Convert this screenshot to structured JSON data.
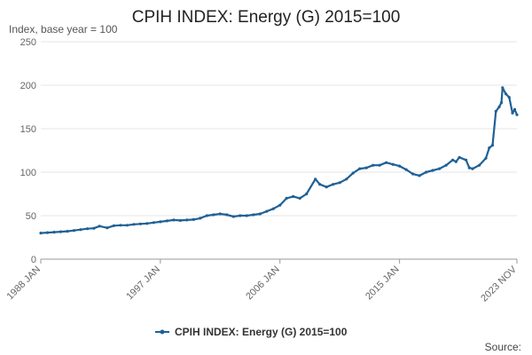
{
  "chart_data": {
    "type": "line",
    "title": "CPIH INDEX: Energy (G) 2015=100",
    "subtitle": "Index, base year = 100",
    "xlabel": "",
    "ylabel": "",
    "ylim": [
      0,
      250
    ],
    "yticks": [
      "0",
      "50",
      "100",
      "150",
      "200",
      "250"
    ],
    "xlim": [
      "1988 JAN",
      "2023 NOV"
    ],
    "xticks": [
      "1988 JAN",
      "1997 JAN",
      "2006 JAN",
      "2015 JAN",
      "2023 NOV"
    ],
    "grid": true,
    "legend_position": "bottom",
    "source_label": "Source:",
    "line_color": "#206095",
    "series": [
      {
        "name": "CPIH INDEX: Energy (G) 2015=100",
        "points": [
          [
            "1988-01",
            30
          ],
          [
            "1988-07",
            30.5
          ],
          [
            "1989-01",
            31
          ],
          [
            "1989-07",
            31.5
          ],
          [
            "1990-01",
            32
          ],
          [
            "1990-07",
            33
          ],
          [
            "1991-01",
            34
          ],
          [
            "1991-07",
            35
          ],
          [
            "1992-01",
            35.5
          ],
          [
            "1992-06",
            38
          ],
          [
            "1993-01",
            36
          ],
          [
            "1993-07",
            38.5
          ],
          [
            "1994-01",
            39
          ],
          [
            "1994-07",
            39
          ],
          [
            "1995-01",
            40
          ],
          [
            "1995-07",
            40.5
          ],
          [
            "1996-01",
            41
          ],
          [
            "1996-07",
            42
          ],
          [
            "1997-01",
            43
          ],
          [
            "1997-07",
            44
          ],
          [
            "1998-01",
            45
          ],
          [
            "1998-07",
            44.5
          ],
          [
            "1999-01",
            45
          ],
          [
            "1999-07",
            45.5
          ],
          [
            "2000-01",
            47
          ],
          [
            "2000-07",
            50
          ],
          [
            "2001-01",
            51
          ],
          [
            "2001-07",
            52
          ],
          [
            "2002-01",
            51
          ],
          [
            "2002-07",
            49
          ],
          [
            "2003-01",
            50
          ],
          [
            "2003-07",
            50
          ],
          [
            "2004-01",
            51
          ],
          [
            "2004-07",
            52
          ],
          [
            "2005-01",
            55
          ],
          [
            "2005-07",
            58
          ],
          [
            "2006-01",
            62
          ],
          [
            "2006-07",
            70
          ],
          [
            "2007-01",
            72
          ],
          [
            "2007-07",
            70
          ],
          [
            "2008-01",
            75
          ],
          [
            "2008-09",
            92
          ],
          [
            "2009-01",
            86
          ],
          [
            "2009-07",
            83
          ],
          [
            "2010-01",
            86
          ],
          [
            "2010-07",
            88
          ],
          [
            "2011-01",
            92
          ],
          [
            "2011-07",
            99
          ],
          [
            "2012-01",
            104
          ],
          [
            "2012-07",
            105
          ],
          [
            "2013-01",
            108
          ],
          [
            "2013-07",
            108
          ],
          [
            "2014-01",
            111
          ],
          [
            "2014-07",
            109
          ],
          [
            "2015-01",
            107
          ],
          [
            "2015-07",
            103
          ],
          [
            "2016-01",
            98
          ],
          [
            "2016-07",
            96
          ],
          [
            "2017-01",
            100
          ],
          [
            "2017-07",
            102
          ],
          [
            "2018-01",
            104
          ],
          [
            "2018-07",
            108
          ],
          [
            "2019-01",
            114
          ],
          [
            "2019-04",
            112
          ],
          [
            "2019-07",
            117
          ],
          [
            "2020-01",
            114
          ],
          [
            "2020-04",
            105
          ],
          [
            "2020-07",
            104
          ],
          [
            "2021-01",
            108
          ],
          [
            "2021-07",
            116
          ],
          [
            "2021-10",
            128
          ],
          [
            "2022-01",
            131
          ],
          [
            "2022-04",
            170
          ],
          [
            "2022-07",
            175
          ],
          [
            "2022-09",
            180
          ],
          [
            "2022-10",
            197
          ],
          [
            "2023-01",
            190
          ],
          [
            "2023-04",
            186
          ],
          [
            "2023-07",
            168
          ],
          [
            "2023-09",
            172
          ],
          [
            "2023-11",
            166
          ]
        ]
      }
    ]
  }
}
